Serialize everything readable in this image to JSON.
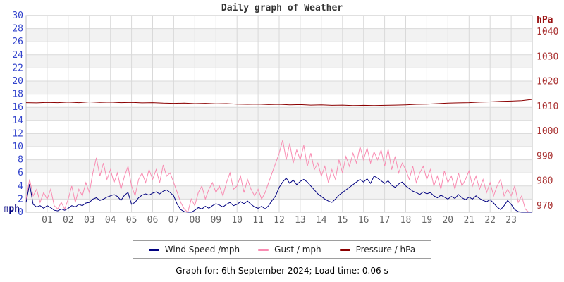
{
  "title": "Daily graph of Weather",
  "footer": {
    "text": "Graph for: 6th September 2024; Load time: 0.06 s"
  },
  "legend": [
    {
      "label": "Wind Speed /mph",
      "color": "#000080"
    },
    {
      "label": "Gust / mph",
      "color": "#f98cb2"
    },
    {
      "label": "Pressure / hPa",
      "color": "#8b0000"
    }
  ],
  "chart_data": {
    "type": "line",
    "title": "Daily graph of Weather",
    "grid": true,
    "grid_color": "#d9d9d9",
    "border_color": "#c0c0c0",
    "band_colors": [
      "#ffffff",
      "#f2f2f2"
    ],
    "legend_position": "bottom",
    "x_axis": {
      "range": [
        0,
        24
      ],
      "ticks": [
        "01",
        "02",
        "03",
        "04",
        "05",
        "06",
        "07",
        "08",
        "09",
        "10",
        "11",
        "12",
        "13",
        "14",
        "15",
        "16",
        "17",
        "18",
        "19",
        "20",
        "21",
        "22",
        "23"
      ],
      "tick_color": "#666666"
    },
    "y_axis_left": {
      "label": "mph",
      "range": [
        0,
        30
      ],
      "tick_step": 2,
      "ticks": [
        0,
        2,
        4,
        6,
        8,
        10,
        12,
        14,
        16,
        18,
        20,
        22,
        24,
        26,
        28,
        30
      ],
      "tick_color": "#3344cc",
      "unit_color": "#000080"
    },
    "y_axis_right": {
      "label": "hPa",
      "range": [
        970,
        1040
      ],
      "tick_step": 10,
      "ticks": [
        970,
        980,
        990,
        1000,
        1010,
        1020,
        1030,
        1040
      ],
      "tick_color": "#aa3333",
      "unit_color": "#991111"
    },
    "series": [
      {
        "name": "Wind Speed /mph",
        "axis": "left",
        "color": "#000080",
        "interval_min": 10,
        "values": [
          1.5,
          4.3,
          1.2,
          0.8,
          1.0,
          0.6,
          1.0,
          0.7,
          0.3,
          0.2,
          0.5,
          0.3,
          0.6,
          1.0,
          0.8,
          1.2,
          1.0,
          1.4,
          1.5,
          2.0,
          2.2,
          1.8,
          2.0,
          2.3,
          2.5,
          2.7,
          2.4,
          1.8,
          2.6,
          3.0,
          1.2,
          1.5,
          2.2,
          2.6,
          2.8,
          2.6,
          2.9,
          3.1,
          2.8,
          3.2,
          3.4,
          3.0,
          2.5,
          1.2,
          0.4,
          0.1,
          0.0,
          0.0,
          0.3,
          0.7,
          0.5,
          0.9,
          0.6,
          1.0,
          1.3,
          1.1,
          0.8,
          1.2,
          1.5,
          1.0,
          1.2,
          1.6,
          1.3,
          1.7,
          1.2,
          0.8,
          0.6,
          0.9,
          0.5,
          1.0,
          1.8,
          2.5,
          3.8,
          4.6,
          5.2,
          4.4,
          4.9,
          4.2,
          4.7,
          5.0,
          4.6,
          4.0,
          3.4,
          2.8,
          2.4,
          2.0,
          1.7,
          1.5,
          2.0,
          2.6,
          3.0,
          3.4,
          3.8,
          4.2,
          4.6,
          5.0,
          4.6,
          5.1,
          4.4,
          5.5,
          5.2,
          4.8,
          4.4,
          4.8,
          4.1,
          3.8,
          4.3,
          4.6,
          4.0,
          3.6,
          3.2,
          3.0,
          2.7,
          3.1,
          2.8,
          3.0,
          2.5,
          2.2,
          2.6,
          2.3,
          2.0,
          2.4,
          2.1,
          2.7,
          2.2,
          1.9,
          2.3,
          2.0,
          2.5,
          2.1,
          1.8,
          1.6,
          1.9,
          1.4,
          0.8,
          0.4,
          1.0,
          1.8,
          1.2,
          0.4,
          0.1,
          0.0,
          0.0,
          0.0,
          0.0
        ]
      },
      {
        "name": "Gust / mph",
        "axis": "left",
        "color": "#f98cb2",
        "interval_min": 10,
        "values": [
          2.0,
          5.0,
          2.5,
          3.5,
          1.5,
          3.0,
          2.0,
          3.5,
          1.0,
          0.5,
          1.5,
          0.5,
          2.0,
          4.0,
          1.5,
          3.5,
          2.5,
          4.5,
          3.0,
          6.0,
          8.3,
          5.5,
          7.5,
          5.0,
          6.5,
          4.5,
          6.0,
          3.5,
          5.5,
          7.0,
          4.0,
          2.5,
          5.0,
          6.0,
          4.5,
          6.5,
          5.0,
          6.5,
          4.5,
          7.2,
          5.5,
          6.0,
          4.5,
          3.0,
          1.5,
          0.5,
          0.0,
          2.0,
          1.0,
          3.0,
          4.0,
          2.0,
          3.5,
          4.5,
          3.0,
          4.0,
          2.5,
          4.5,
          6.0,
          3.5,
          4.0,
          5.5,
          3.0,
          5.0,
          3.5,
          2.5,
          3.5,
          2.0,
          3.0,
          4.5,
          6.0,
          7.5,
          9.0,
          11.0,
          8.0,
          10.5,
          7.5,
          9.5,
          8.0,
          10.2,
          7.0,
          9.0,
          6.5,
          7.5,
          5.5,
          7.0,
          4.5,
          6.5,
          5.0,
          8.0,
          6.0,
          8.5,
          7.0,
          9.0,
          7.5,
          10.0,
          8.0,
          9.8,
          7.5,
          9.2,
          8.0,
          9.5,
          7.0,
          9.6,
          6.5,
          8.5,
          6.0,
          7.5,
          6.5,
          5.0,
          7.0,
          4.5,
          6.0,
          7.0,
          5.0,
          6.5,
          4.0,
          5.5,
          3.5,
          6.3,
          4.5,
          5.5,
          3.5,
          6.0,
          4.0,
          5.0,
          6.3,
          4.0,
          5.5,
          3.5,
          5.0,
          3.0,
          4.5,
          2.5,
          4.0,
          5.0,
          2.5,
          3.5,
          2.5,
          4.0,
          1.5,
          2.5,
          0.5,
          0.0,
          0.0
        ]
      },
      {
        "name": "Pressure / hPa",
        "axis": "right",
        "color": "#8b0000",
        "interval_min": 30,
        "values": [
          1011.5,
          1011.4,
          1011.6,
          1011.5,
          1011.7,
          1011.5,
          1011.8,
          1011.6,
          1011.7,
          1011.5,
          1011.6,
          1011.4,
          1011.5,
          1011.3,
          1011.2,
          1011.3,
          1011.1,
          1011.2,
          1011.0,
          1011.1,
          1010.9,
          1010.8,
          1010.9,
          1010.7,
          1010.8,
          1010.6,
          1010.7,
          1010.5,
          1010.6,
          1010.4,
          1010.5,
          1010.3,
          1010.4,
          1010.3,
          1010.4,
          1010.5,
          1010.6,
          1010.8,
          1010.9,
          1011.1,
          1011.3,
          1011.4,
          1011.5,
          1011.7,
          1011.8,
          1012.0,
          1012.1,
          1012.3,
          1012.8
        ]
      }
    ]
  }
}
